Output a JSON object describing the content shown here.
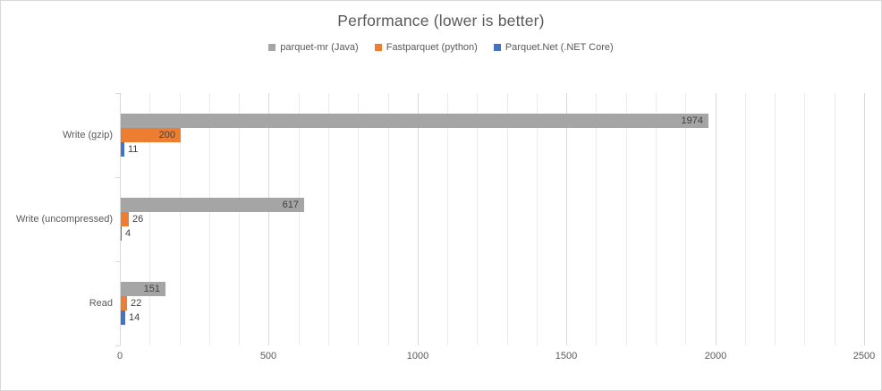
{
  "chart_data": {
    "type": "bar",
    "orientation": "horizontal",
    "title": "Performance (lower is better)",
    "categories": [
      "Write (gzip)",
      "Write (uncompressed)",
      "Read"
    ],
    "series": [
      {
        "name": "parquet-mr (Java)",
        "color": "#a5a5a5",
        "values": [
          1974,
          617,
          151
        ]
      },
      {
        "name": "Fastparquet (python)",
        "color": "#ed7d31",
        "values": [
          200,
          26,
          22
        ]
      },
      {
        "name": "Parquet.Net (.NET Core)",
        "color": "#4472c4",
        "values": [
          11,
          4,
          14
        ]
      }
    ],
    "data_labels": true,
    "legend_position": "top",
    "grid": true,
    "x_axis": {
      "min": 0,
      "max": 2500,
      "major_step": 500,
      "minor_step": 100,
      "tick_labels": [
        "0",
        "500",
        "1000",
        "1500",
        "2000",
        "2500"
      ]
    }
  },
  "colors": {
    "title_text": "#595959",
    "axis_text": "#595959",
    "data_label_text": "#404040",
    "major_gridline": "#d9d9d9",
    "minor_gridline": "#ebebeb",
    "chart_border": "#d8d8d8",
    "background": "#ffffff"
  }
}
